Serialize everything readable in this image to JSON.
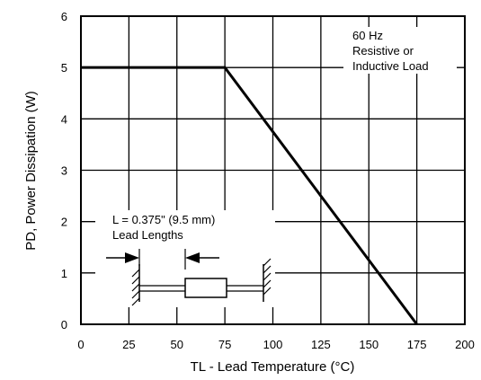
{
  "chart_data": {
    "type": "line",
    "xlabel": "TL - Lead Temperature (°C)",
    "ylabel": "PD, Power Dissipation (W)",
    "xlim": [
      0,
      200
    ],
    "ylim": [
      0,
      6
    ],
    "x_ticks": [
      "0",
      "25",
      "50",
      "75",
      "100",
      "125",
      "150",
      "175",
      "200"
    ],
    "y_ticks": [
      "0",
      "1",
      "2",
      "3",
      "4",
      "5",
      "6"
    ],
    "grid": true,
    "series": [
      {
        "x": [
          0,
          75,
          175
        ],
        "y": [
          5,
          5,
          0
        ]
      }
    ],
    "annotations": {
      "load_note": [
        "60 Hz",
        "Resistive or",
        "Inductive Load"
      ],
      "lead_note": [
        "L = 0.375\" (9.5 mm)",
        "Lead Lengths"
      ]
    }
  }
}
